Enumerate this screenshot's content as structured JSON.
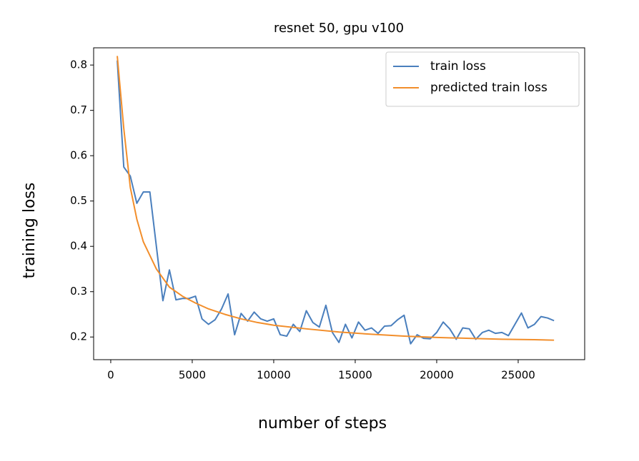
{
  "chart_data": {
    "type": "line",
    "title": "resnet 50, gpu v100",
    "x_label": "number of steps",
    "y_label": "training loss",
    "xlim": [
      -1050,
      29080
    ],
    "ylim": [
      0.15,
      0.838
    ],
    "xticks": [
      0,
      5000,
      10000,
      15000,
      20000,
      25000
    ],
    "yticks": [
      0.2,
      0.3,
      0.4,
      0.5,
      0.6,
      0.7,
      0.8
    ],
    "legend": "upper right",
    "grid": false,
    "series": [
      {
        "name": "train loss",
        "color": "#4a7fbd",
        "x": [
          400,
          800,
          1200,
          1600,
          2000,
          2400,
          2800,
          3200,
          3600,
          4000,
          4400,
          4800,
          5200,
          5600,
          6000,
          6400,
          6800,
          7200,
          7600,
          8000,
          8400,
          8800,
          9200,
          9600,
          10000,
          10400,
          10800,
          11200,
          11600,
          12000,
          12400,
          12800,
          13200,
          13600,
          14000,
          14400,
          14800,
          15200,
          15600,
          16000,
          16400,
          16800,
          17200,
          17600,
          18000,
          18400,
          18800,
          19200,
          19600,
          20000,
          20400,
          20800,
          21200,
          21600,
          22000,
          22400,
          22800,
          23200,
          23600,
          24000,
          24400,
          24800,
          25200,
          25600,
          26000,
          26400,
          26800,
          27200
        ],
        "values": [
          0.81,
          0.575,
          0.555,
          0.495,
          0.52,
          0.52,
          0.4,
          0.28,
          0.348,
          0.282,
          0.285,
          0.285,
          0.29,
          0.24,
          0.228,
          0.238,
          0.262,
          0.295,
          0.205,
          0.252,
          0.235,
          0.255,
          0.24,
          0.235,
          0.24,
          0.205,
          0.202,
          0.228,
          0.212,
          0.258,
          0.232,
          0.222,
          0.27,
          0.21,
          0.188,
          0.228,
          0.198,
          0.233,
          0.215,
          0.22,
          0.208,
          0.224,
          0.225,
          0.238,
          0.248,
          0.185,
          0.205,
          0.197,
          0.196,
          0.21,
          0.233,
          0.218,
          0.195,
          0.22,
          0.218,
          0.195,
          0.21,
          0.215,
          0.208,
          0.21,
          0.203,
          0.228,
          0.253,
          0.22,
          0.228,
          0.245,
          0.242,
          0.236
        ]
      },
      {
        "name": "predicted train loss",
        "color": "#f28e2b",
        "x": [
          400,
          800,
          1200,
          1600,
          2000,
          2800,
          3600,
          4400,
          5200,
          6000,
          7000,
          8000,
          9000,
          10000,
          12000,
          14000,
          16000,
          18000,
          20000,
          22000,
          24000,
          26000,
          27200
        ],
        "values": [
          0.82,
          0.66,
          0.53,
          0.46,
          0.41,
          0.35,
          0.31,
          0.29,
          0.275,
          0.262,
          0.25,
          0.24,
          0.232,
          0.226,
          0.218,
          0.211,
          0.206,
          0.202,
          0.199,
          0.197,
          0.195,
          0.194,
          0.193
        ]
      }
    ]
  }
}
